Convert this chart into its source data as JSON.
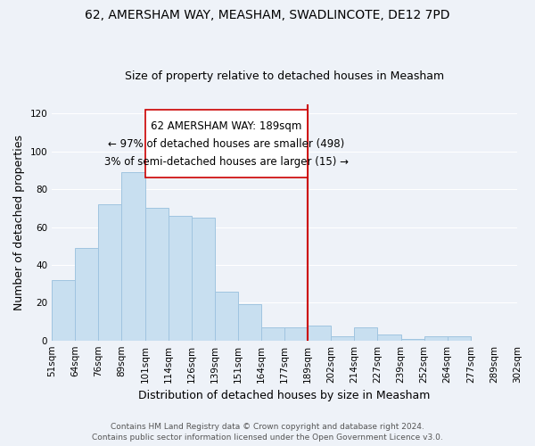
{
  "title1": "62, AMERSHAM WAY, MEASHAM, SWADLINCOTE, DE12 7PD",
  "title2": "Size of property relative to detached houses in Measham",
  "xlabel": "Distribution of detached houses by size in Measham",
  "ylabel": "Number of detached properties",
  "footer1": "Contains HM Land Registry data © Crown copyright and database right 2024.",
  "footer2": "Contains public sector information licensed under the Open Government Licence v3.0.",
  "annotation_title": "62 AMERSHAM WAY: 189sqm",
  "annotation_line1": "← 97% of detached houses are smaller (498)",
  "annotation_line2": "3% of semi-detached houses are larger (15) →",
  "bar_heights": [
    32,
    49,
    72,
    89,
    70,
    66,
    65,
    26,
    19,
    7,
    7,
    8,
    2,
    7,
    3,
    1,
    2,
    2
  ],
  "bin_labels": [
    "51sqm",
    "64sqm",
    "76sqm",
    "89sqm",
    "101sqm",
    "114sqm",
    "126sqm",
    "139sqm",
    "151sqm",
    "164sqm",
    "177sqm",
    "189sqm",
    "202sqm",
    "214sqm",
    "227sqm",
    "239sqm",
    "252sqm",
    "264sqm",
    "277sqm",
    "289sqm",
    "302sqm"
  ],
  "bar_color": "#c8dff0",
  "bar_edge_color": "#a0c4e0",
  "vline_color": "#cc0000",
  "annotation_box_edge": "#cc0000",
  "ylim": [
    0,
    125
  ],
  "background_color": "#eef2f8",
  "grid_color": "#ffffff",
  "title1_fontsize": 10,
  "title2_fontsize": 9,
  "axis_label_fontsize": 9,
  "tick_fontsize": 7.5,
  "annotation_fontsize": 8.5,
  "footer_fontsize": 6.5
}
